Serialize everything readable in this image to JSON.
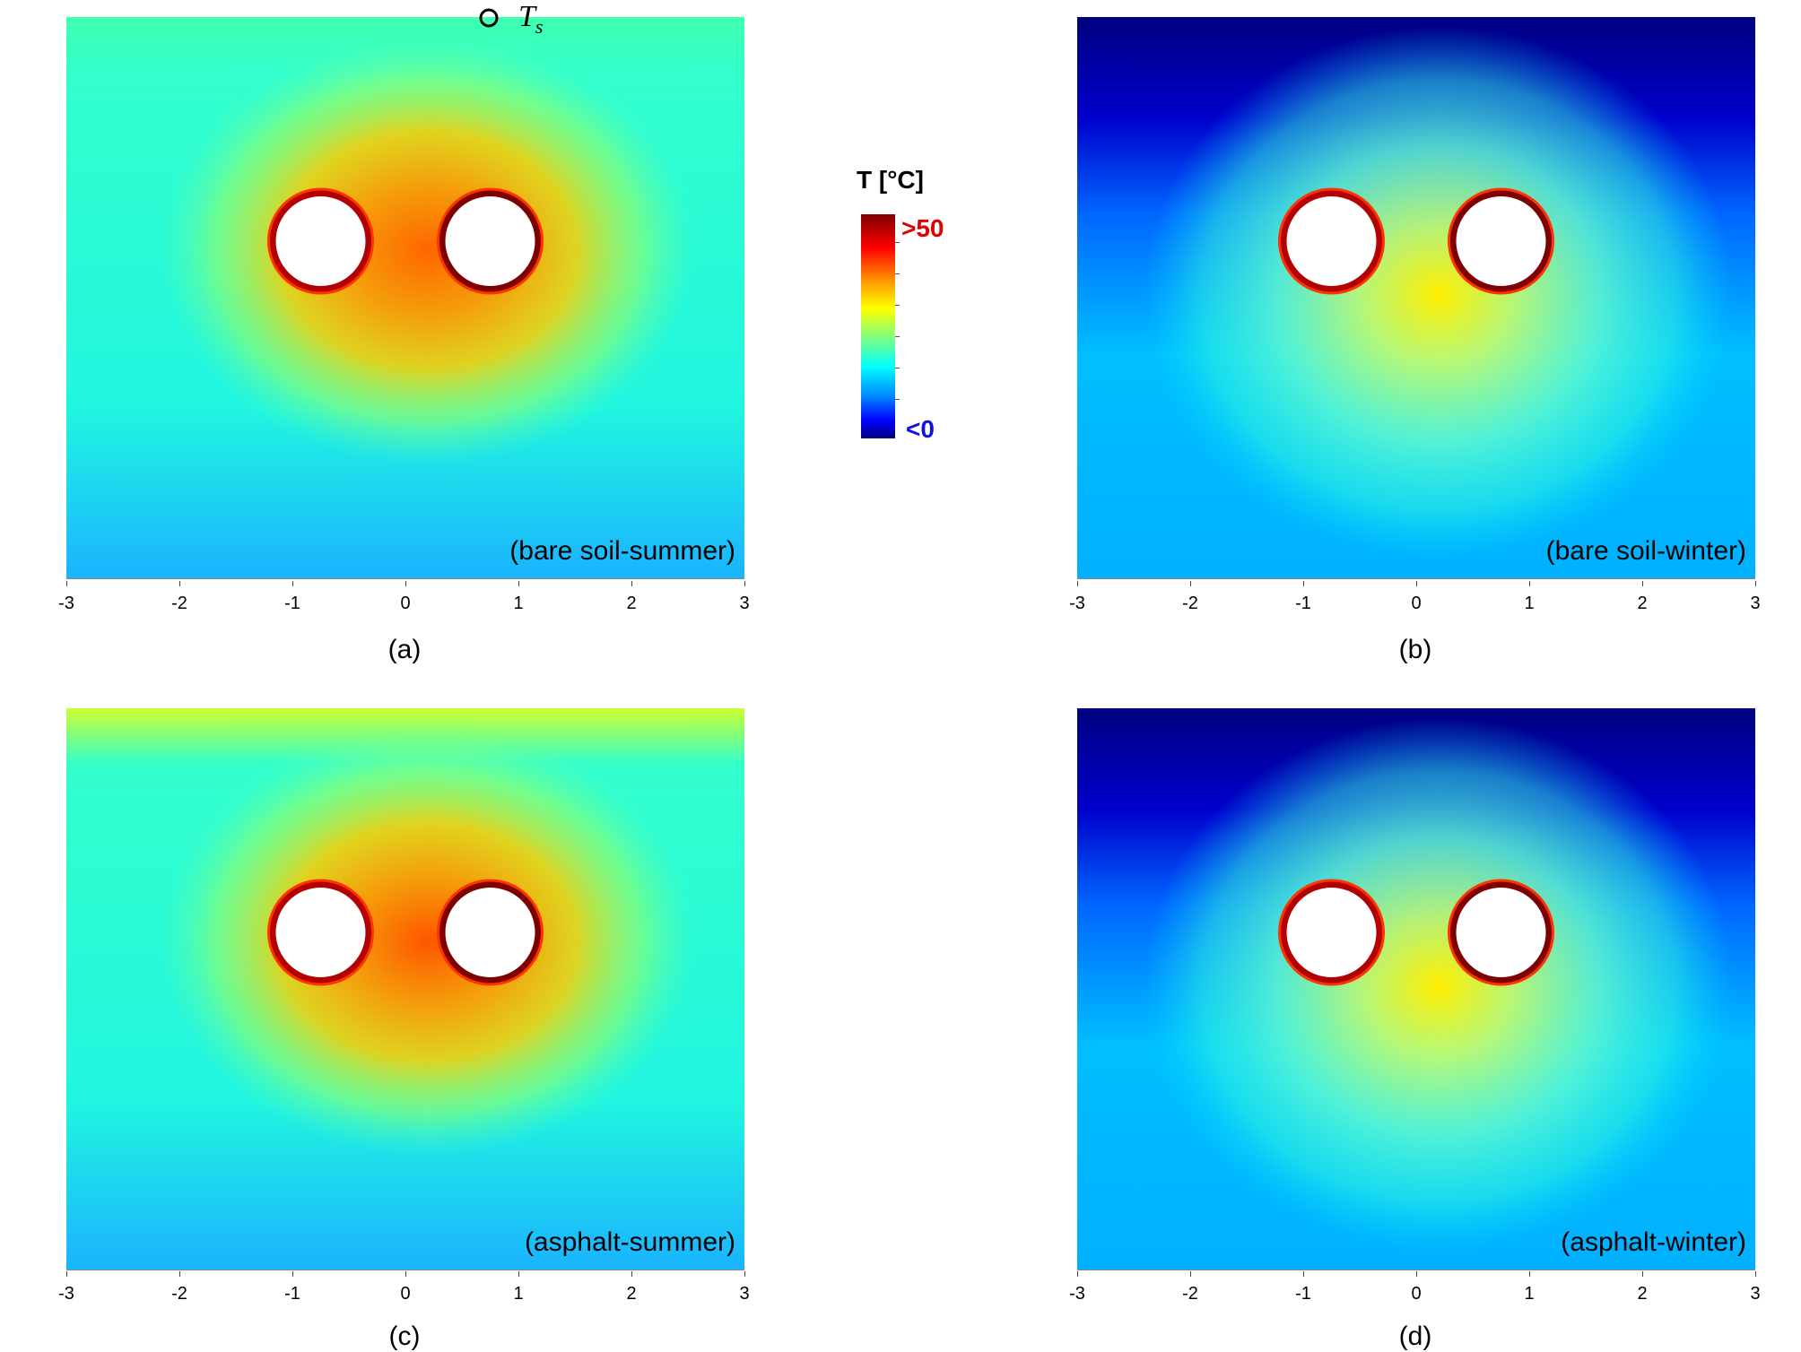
{
  "chart_data": {
    "type": "heatmap",
    "colorbar": {
      "title": "T [°C]",
      "max_label": ">50",
      "min_label": "<0",
      "max_color": "#e00000",
      "min_color": "#1010e0",
      "colormap": "jet"
    },
    "surface_marker": {
      "symbol": "circle",
      "label": "T",
      "subscript": "s"
    },
    "x_ticks": [
      "-3",
      "-2",
      "-1",
      "0",
      "1",
      "2",
      "3"
    ],
    "xlim": [
      -3,
      3
    ],
    "pipes": [
      {
        "x": -0.75,
        "y": 0
      },
      {
        "x": 0.75,
        "y": 0
      }
    ],
    "panels": [
      {
        "id": "a",
        "label": "(a)",
        "case": "(bare soil-summer)",
        "season": "summer",
        "surface": "bare soil",
        "colors": {
          "background": "#33ffcc",
          "bottom": "#1ab3ff",
          "halo": "#ffcc00",
          "core": "#ff6600",
          "top": "#40ffb0"
        }
      },
      {
        "id": "b",
        "label": "(b)",
        "case": "(bare soil-winter)",
        "season": "winter",
        "surface": "bare soil",
        "colors": {
          "background": "#0066ff",
          "bottom": "#00b0ff",
          "halo": "#66ffcc",
          "core": "#ffee00",
          "top": "#000080"
        }
      },
      {
        "id": "c",
        "label": "(c)",
        "case": "(asphalt-summer)",
        "season": "summer",
        "surface": "asphalt",
        "colors": {
          "background": "#33ffcc",
          "bottom": "#1ab3ff",
          "halo": "#ffcc00",
          "core": "#ff5500",
          "top": "#ccff33"
        }
      },
      {
        "id": "d",
        "label": "(d)",
        "case": "(asphalt-winter)",
        "season": "winter",
        "surface": "asphalt",
        "colors": {
          "background": "#0066ff",
          "bottom": "#00b0ff",
          "halo": "#66ffcc",
          "core": "#ffee00",
          "top": "#000080"
        }
      }
    ]
  }
}
